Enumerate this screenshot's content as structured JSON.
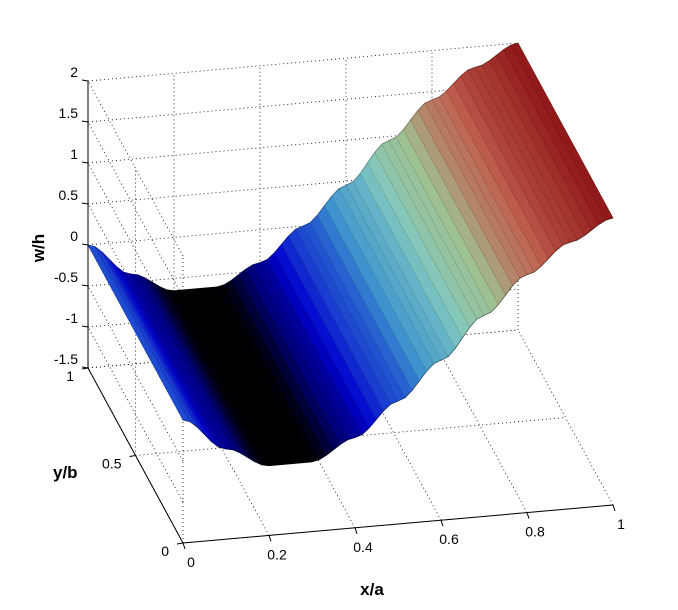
{
  "chart_data": {
    "type": "surface",
    "title": "",
    "xlabel": "x/a",
    "ylabel": "y/b",
    "zlabel": "w/h",
    "xlim": [
      0,
      1
    ],
    "ylim": [
      0,
      1
    ],
    "zlim": [
      -1.5,
      2
    ],
    "x_ticks": [
      "0",
      "0.2",
      "0.4",
      "0.6",
      "0.8",
      "1"
    ],
    "y_ticks": [
      "0",
      "0.5",
      "1"
    ],
    "z_ticks": [
      "-1.5",
      "-1",
      "-0.5",
      "0",
      "0.5",
      "1",
      "1.5",
      "2"
    ],
    "grid": true,
    "colormap": [
      "#000000",
      "#0000d0",
      "#3a8fd0",
      "#7fc8c0",
      "#a0c090",
      "#c06050",
      "#901818"
    ],
    "x": [
      0,
      0.1,
      0.2,
      0.3,
      0.4,
      0.5,
      0.6,
      0.7,
      0.8,
      0.9,
      1.0
    ],
    "w_profile": [
      0,
      -0.4,
      -0.65,
      -0.65,
      -0.4,
      0.0,
      0.45,
      0.95,
      1.4,
      1.75,
      2.0
    ],
    "w_profile_note_y": "surface is constant along y/b"
  }
}
